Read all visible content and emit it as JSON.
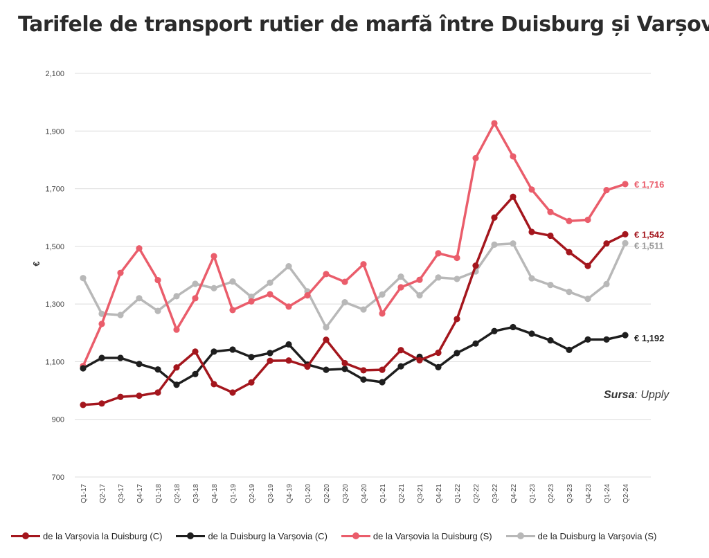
{
  "chart_data": {
    "type": "line",
    "title": "Tarifele de transport rutier de marfă între Duisburg și Varșovia",
    "ylabel": "€",
    "xlabel": "",
    "ylim": [
      700,
      2100
    ],
    "yticks": [
      "700",
      "900",
      "1,100",
      "1,300",
      "1,500",
      "1,700",
      "1,900",
      "2,100"
    ],
    "ytick_values": [
      700,
      900,
      1100,
      1300,
      1500,
      1700,
      1900,
      2100
    ],
    "grid": "horizontal",
    "legend_position": "bottom",
    "categories": [
      "Q1-17",
      "Q2-17",
      "Q3-17",
      "Q4-17",
      "Q1-18",
      "Q2-18",
      "Q3-18",
      "Q4-18",
      "Q1-19",
      "Q2-19",
      "Q3-19",
      "Q4-19",
      "Q1-20",
      "Q2-20",
      "Q3-20",
      "Q4-20",
      "Q1-21",
      "Q2-21",
      "Q3-21",
      "Q4-21",
      "Q1-22",
      "Q2-22",
      "Q3-22",
      "Q4-22",
      "Q1-23",
      "Q2-23",
      "Q3-23",
      "Q4-23",
      "Q1-24",
      "Q2-24"
    ],
    "series": [
      {
        "name": "de la Varșovia la Duisburg (C)",
        "color": "#a4161d",
        "end_label": "€ 1,542",
        "values": [
          950,
          955,
          978,
          982,
          993,
          1080,
          1135,
          1022,
          993,
          1028,
          1103,
          1104,
          1083,
          1176,
          1095,
          1070,
          1072,
          1140,
          1105,
          1131,
          1248,
          1433,
          1600,
          1672,
          1550,
          1537,
          1480,
          1432,
          1510,
          1542
        ]
      },
      {
        "name": "de la Duisburg la Varșovia (C)",
        "color": "#1e1e1e",
        "end_label": "€ 1,192",
        "values": [
          1077,
          1113,
          1113,
          1092,
          1073,
          1020,
          1057,
          1135,
          1142,
          1116,
          1130,
          1160,
          1090,
          1072,
          1075,
          1038,
          1029,
          1084,
          1117,
          1081,
          1130,
          1163,
          1206,
          1220,
          1197,
          1174,
          1141,
          1177,
          1177,
          1192
        ]
      },
      {
        "name": "de la Varșovia la Duisburg (S)",
        "color": "#ea5d6b",
        "end_label": "€ 1,716",
        "values": [
          1085,
          1231,
          1408,
          1493,
          1383,
          1211,
          1320,
          1466,
          1279,
          1309,
          1334,
          1291,
          1330,
          1404,
          1377,
          1438,
          1267,
          1358,
          1384,
          1476,
          1460,
          1806,
          1927,
          1812,
          1697,
          1619,
          1588,
          1592,
          1695,
          1716
        ]
      },
      {
        "name": "de la Duisburg la Varșovia (S)",
        "color": "#b8b8b8",
        "end_label": "€ 1,511",
        "values": [
          1390,
          1266,
          1262,
          1320,
          1276,
          1327,
          1370,
          1355,
          1378,
          1325,
          1374,
          1431,
          1344,
          1219,
          1306,
          1281,
          1333,
          1395,
          1330,
          1392,
          1387,
          1413,
          1506,
          1510,
          1389,
          1366,
          1342,
          1318,
          1369,
          1511
        ]
      }
    ]
  },
  "source": {
    "label": "Sursa",
    "value": ": Upply"
  }
}
